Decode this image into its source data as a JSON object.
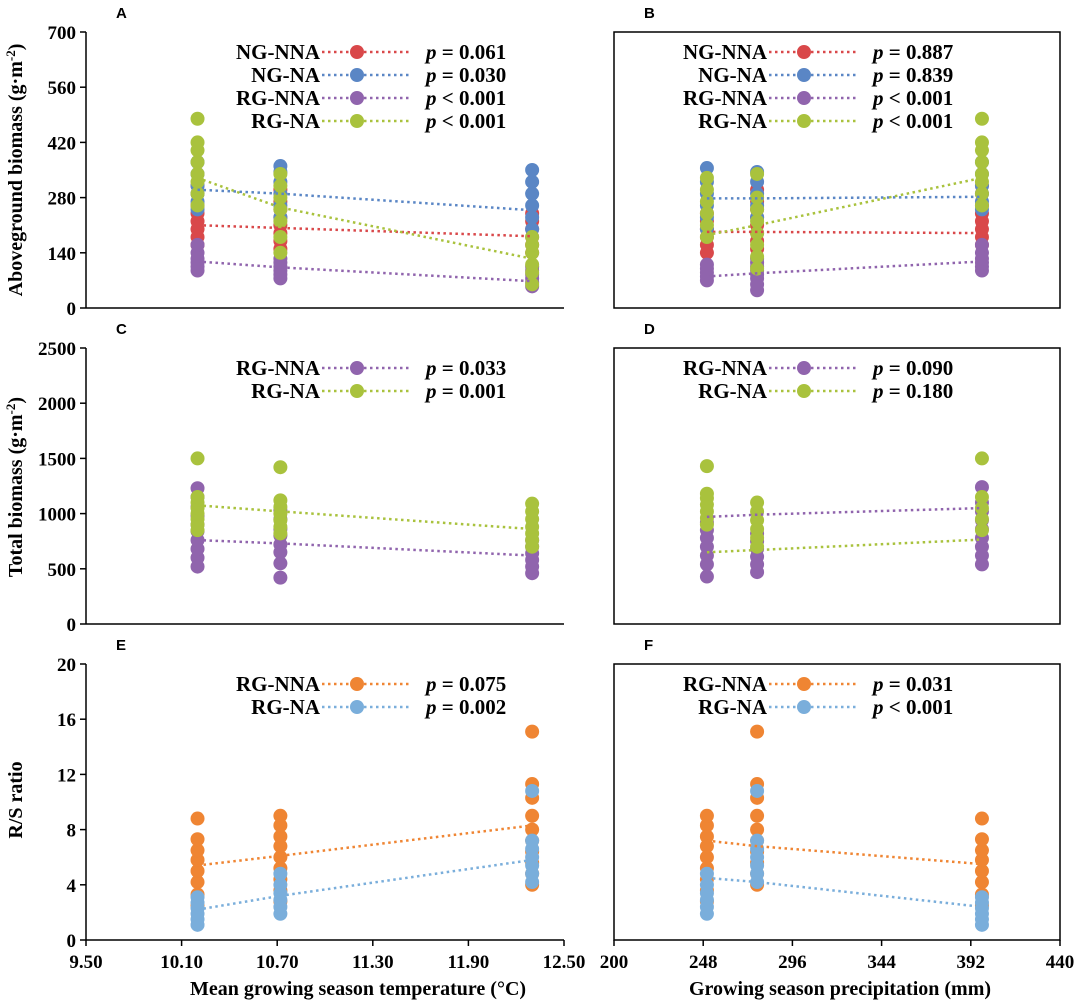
{
  "colors": {
    "NG-NNA": "#d9484a",
    "NG-NA": "#5a86c5",
    "RG-NNA": "#9064ad",
    "RG-NA": "#a9c23d",
    "RG-NNA-rs": "#ef8533",
    "RG-NA-rs": "#7aaedb"
  },
  "shared": {
    "x_title_left": "Mean growing season temperature (°C)",
    "x_title_right": "Growing  season precipitation (mm)",
    "y_title_top": "Aboveground biomass (g·m",
    "y_title_mid": "Total biomass (g·m",
    "y_title_sup": "-2",
    "y_title_close": ")",
    "y_title_bottom": "R/S ratio",
    "x_ticks_left": [
      "9.50",
      "10.10",
      "10.70",
      "11.30",
      "11.90",
      "12.50"
    ],
    "x_ticks_right": [
      "200",
      "248",
      "296",
      "344",
      "392",
      "440"
    ]
  },
  "chart_data": [
    {
      "panel": "A",
      "type": "scatter",
      "xlim": [
        9.5,
        12.5
      ],
      "ylim": [
        0,
        700
      ],
      "yticks": [
        "0",
        "140",
        "280",
        "420",
        "560",
        "700"
      ],
      "legend": [
        {
          "name": "NG-NNA",
          "p": "p = 0.061"
        },
        {
          "name": "NG-NA",
          "p": "p = 0.030"
        },
        {
          "name": "RG-NNA",
          "p": "p < 0.001"
        },
        {
          "name": "RG-NA",
          "p": "p < 0.001"
        }
      ],
      "series": [
        {
          "name": "NG-NNA",
          "x": [
            10.2,
            10.72,
            12.3
          ],
          "points": [
            [
              160,
              180,
              200,
              220,
              240,
              260,
              290,
              310
            ],
            [
              150,
              170,
              190,
              210,
              230,
              250,
              270,
              300
            ],
            [
              140,
              160,
              180,
              200,
              220,
              240
            ]
          ],
          "trend": [
            210,
            203,
            182
          ]
        },
        {
          "name": "NG-NA",
          "x": [
            10.2,
            10.72,
            12.3
          ],
          "points": [
            [
              250,
              270,
              290,
              310,
              340,
              370
            ],
            [
              230,
              260,
              290,
              320,
              345,
              360
            ],
            [
              200,
              230,
              260,
              290,
              320,
              350
            ]
          ],
          "trend": [
            300,
            290,
            248
          ]
        },
        {
          "name": "RG-NNA",
          "x": [
            10.2,
            10.72,
            12.3
          ],
          "points": [
            [
              95,
              105,
              115,
              125,
              140,
              160
            ],
            [
              75,
              85,
              95,
              105,
              115,
              125
            ],
            [
              55,
              65,
              75,
              85,
              95,
              105
            ]
          ],
          "trend": [
            118,
            103,
            68
          ]
        },
        {
          "name": "RG-NA",
          "x": [
            10.2,
            10.72,
            12.3
          ],
          "points": [
            [
              260,
              290,
              320,
              340,
              370,
              400,
              420,
              480
            ],
            [
              140,
              180,
              220,
              250,
              280,
              310,
              340
            ],
            [
              60,
              90,
              110,
              140,
              160,
              180
            ]
          ],
          "trend": [
            330,
            255,
            125
          ]
        }
      ]
    },
    {
      "panel": "B",
      "type": "scatter",
      "xlim": [
        200,
        440
      ],
      "ylim": [
        0,
        700
      ],
      "yticks": [],
      "legend": [
        {
          "name": "NG-NNA",
          "p": "p = 0.887"
        },
        {
          "name": "NG-NA",
          "p": "p = 0.839"
        },
        {
          "name": "RG-NNA",
          "p": "p < 0.001"
        },
        {
          "name": "RG-NA",
          "p": "p < 0.001"
        }
      ],
      "series": [
        {
          "name": "NG-NNA",
          "x": [
            250,
            277,
            398
          ],
          "points": [
            [
              140,
              160,
              180,
              200,
              220,
              240
            ],
            [
              150,
              170,
              190,
              210,
              230,
              250,
              270,
              300
            ],
            [
              160,
              180,
              200,
              220,
              240,
              260,
              290,
              310
            ]
          ],
          "trend": [
            193,
            193,
            190
          ]
        },
        {
          "name": "NG-NA",
          "x": [
            250,
            277,
            398
          ],
          "points": [
            [
              200,
              230,
              260,
              290,
              320,
              355
            ],
            [
              230,
              260,
              290,
              320,
              345
            ],
            [
              250,
              270,
              290,
              310,
              340,
              370
            ]
          ],
          "trend": [
            278,
            278,
            282
          ]
        },
        {
          "name": "RG-NNA",
          "x": [
            250,
            277,
            398
          ],
          "points": [
            [
              70,
              80,
              90,
              100,
              110
            ],
            [
              45,
              60,
              75,
              85,
              95,
              105,
              115,
              125
            ],
            [
              95,
              105,
              115,
              125,
              140,
              160
            ]
          ],
          "trend": [
            80,
            88,
            118
          ]
        },
        {
          "name": "RG-NA",
          "x": [
            250,
            277,
            398
          ],
          "points": [
            [
              180,
              210,
              240,
              270,
              300,
              330
            ],
            [
              100,
              130,
              160,
              190,
              220,
              250,
              280,
              340
            ],
            [
              260,
              290,
              320,
              340,
              370,
              400,
              420,
              480
            ]
          ],
          "trend": [
            185,
            210,
            330
          ]
        }
      ]
    },
    {
      "panel": "C",
      "type": "scatter",
      "xlim": [
        9.5,
        12.5
      ],
      "ylim": [
        0,
        2500
      ],
      "yticks": [
        "0",
        "500",
        "1000",
        "1500",
        "2000",
        "2500"
      ],
      "legend": [
        {
          "name": "RG-NNA",
          "p": "p = 0.033"
        },
        {
          "name": "RG-NA",
          "p": "p = 0.001"
        }
      ],
      "series": [
        {
          "name": "RG-NNA",
          "x": [
            10.2,
            10.72,
            12.3
          ],
          "points": [
            [
              520,
              600,
              680,
              760,
              840,
              900,
              980,
              1060,
              1150,
              1230
            ],
            [
              420,
              550,
              650,
              720,
              800,
              860,
              950,
              1030
            ],
            [
              460,
              520,
              580,
              640,
              700,
              760
            ]
          ],
          "trend": [
            760,
            730,
            620
          ]
        },
        {
          "name": "RG-NA",
          "x": [
            10.2,
            10.72,
            12.3
          ],
          "points": [
            [
              850,
              900,
              950,
              1000,
              1050,
              1100,
              1150,
              1500
            ],
            [
              820,
              880,
              940,
              1000,
              1060,
              1120,
              1420
            ],
            [
              700,
              760,
              820,
              880,
              950,
              1020,
              1090
            ]
          ],
          "trend": [
            1075,
            1020,
            860
          ]
        }
      ]
    },
    {
      "panel": "D",
      "type": "scatter",
      "xlim": [
        200,
        440
      ],
      "ylim": [
        0,
        2500
      ],
      "yticks": [],
      "legend": [
        {
          "name": "RG-NNA",
          "p": "p = 0.090"
        },
        {
          "name": "RG-NA",
          "p": "p = 0.180"
        }
      ],
      "series": [
        {
          "name": "RG-NNA",
          "x": [
            250,
            277,
            398
          ],
          "points": [
            [
              430,
              540,
              620,
              700,
              780,
              850,
              920
            ],
            [
              470,
              540,
              610,
              680,
              750,
              820
            ],
            [
              540,
              620,
              700,
              780,
              860,
              940,
              1020,
              1100,
              1240
            ]
          ],
          "trend": [
            970,
            990,
            1050
          ]
        },
        {
          "name": "RG-NA",
          "x": [
            250,
            277,
            398
          ],
          "points": [
            [
              900,
              960,
              1020,
              1080,
              1140,
              1180,
              1430
            ],
            [
              700,
              780,
              860,
              940,
              1020,
              1100
            ],
            [
              850,
              950,
              1050,
              1150,
              1500
            ]
          ],
          "trend": [
            650,
            670,
            765
          ]
        }
      ]
    },
    {
      "panel": "E",
      "type": "scatter",
      "xlim": [
        9.5,
        12.5
      ],
      "ylim": [
        0,
        20
      ],
      "yticks": [
        "0",
        "4",
        "8",
        "12",
        "16",
        "20"
      ],
      "legend": [
        {
          "name": "RG-NNA",
          "p": "p = 0.075"
        },
        {
          "name": "RG-NA",
          "p": "p = 0.002"
        }
      ],
      "series": [
        {
          "name": "RG-NNA",
          "x": [
            10.2,
            10.72,
            12.3
          ],
          "points": [
            [
              2.5,
              3.3,
              4.2,
              5.0,
              5.8,
              6.5,
              7.3,
              8.8
            ],
            [
              2.8,
              3.6,
              4.4,
              5.2,
              6.0,
              6.8,
              7.5,
              8.3,
              9.0
            ],
            [
              4.0,
              4.8,
              5.6,
              6.4,
              7.2,
              8.0,
              9.0,
              10.3,
              11.3,
              15.1
            ]
          ],
          "trend": [
            5.4,
            6.1,
            8.3
          ]
        },
        {
          "name": "RG-NA",
          "x": [
            10.2,
            10.72,
            12.3
          ],
          "points": [
            [
              1.1,
              1.5,
              1.9,
              2.3,
              2.7,
              3.1
            ],
            [
              1.9,
              2.4,
              2.9,
              3.4,
              4.0,
              4.8
            ],
            [
              4.2,
              4.8,
              5.4,
              6.0,
              6.6,
              7.2,
              10.8
            ]
          ],
          "trend": [
            2.2,
            3.2,
            5.8
          ]
        }
      ]
    },
    {
      "panel": "F",
      "type": "scatter",
      "xlim": [
        200,
        440
      ],
      "ylim": [
        0,
        20
      ],
      "yticks": [],
      "legend": [
        {
          "name": "RG-NNA",
          "p": "p = 0.031"
        },
        {
          "name": "RG-NA",
          "p": "p < 0.001"
        }
      ],
      "series": [
        {
          "name": "RG-NNA",
          "x": [
            250,
            277,
            398
          ],
          "points": [
            [
              2.8,
              3.6,
              4.4,
              5.2,
              6.0,
              6.8,
              7.5,
              8.3,
              9.0
            ],
            [
              4.0,
              4.8,
              5.6,
              6.4,
              7.2,
              8.0,
              9.0,
              10.3,
              11.3,
              15.1
            ],
            [
              2.5,
              3.3,
              4.2,
              5.0,
              5.8,
              6.5,
              7.3,
              8.8
            ]
          ],
          "trend": [
            7.2,
            6.8,
            5.5
          ]
        },
        {
          "name": "RG-NA",
          "x": [
            250,
            277,
            398
          ],
          "points": [
            [
              1.9,
              2.4,
              2.9,
              3.4,
              4.0,
              4.8
            ],
            [
              4.2,
              4.8,
              5.4,
              6.0,
              6.6,
              7.2,
              10.8
            ],
            [
              1.1,
              1.5,
              1.9,
              2.3,
              2.7,
              3.1
            ]
          ],
          "trend": [
            4.5,
            4.2,
            2.4
          ]
        }
      ]
    }
  ]
}
